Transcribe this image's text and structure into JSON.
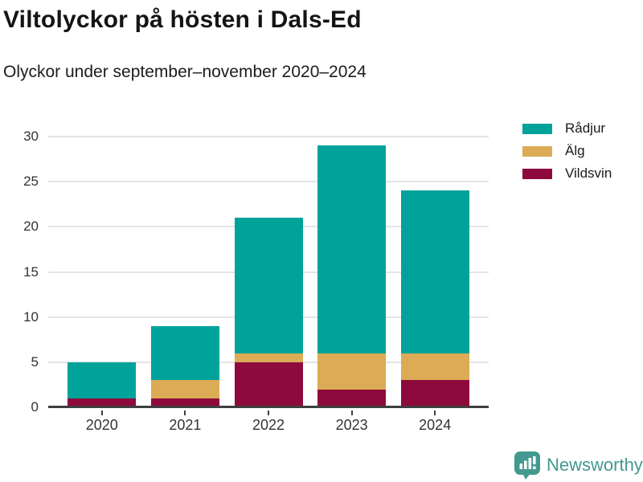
{
  "chart_data": {
    "type": "bar",
    "stacked": true,
    "title": "Viltolyckor på hösten i Dals-Ed",
    "subtitle": "Olyckor under september–november 2020–2024",
    "categories": [
      "2020",
      "2021",
      "2022",
      "2023",
      "2024"
    ],
    "series": [
      {
        "name": "Rådjur",
        "color": "#00a39a",
        "values": [
          4,
          6,
          15,
          23,
          18
        ]
      },
      {
        "name": "Älg",
        "color": "#dbab55",
        "values": [
          0,
          2,
          1,
          4,
          3
        ]
      },
      {
        "name": "Vildsvin",
        "color": "#8e0a3c",
        "values": [
          1,
          1,
          5,
          2,
          3
        ]
      }
    ],
    "totals": [
      5,
      9,
      21,
      29,
      24
    ],
    "ylim": [
      0,
      30
    ],
    "yticks": [
      0,
      5,
      10,
      15,
      20,
      25,
      30
    ],
    "grid": true,
    "legend_position": "top-right",
    "axis_color": "#3f3f3f",
    "gridline_color": "#e4e4e4"
  },
  "branding": {
    "name": "Newsworthy",
    "color": "#43998f",
    "logo_icon": "bar-chart-speech-bubble-icon"
  }
}
